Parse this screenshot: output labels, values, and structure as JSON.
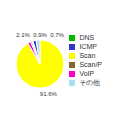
{
  "chart_data": {
    "type": "pie",
    "categories": [
      "Scan",
      "VoIP",
      "DNS",
      "Scan/P",
      "ICMP",
      "その他"
    ],
    "values": [
      91.6,
      2.1,
      0.9,
      0.7,
      2.1,
      2.6
    ],
    "colors": [
      "#ffff00",
      "#ff00cc",
      "#00bb00",
      "#886633",
      "#3333cc",
      "#aaddee"
    ],
    "value_labels": [
      "91.6%",
      "2.1%",
      "0.9%",
      "0.7%",
      null,
      null
    ],
    "data_labels": true,
    "legend": "right"
  }
}
